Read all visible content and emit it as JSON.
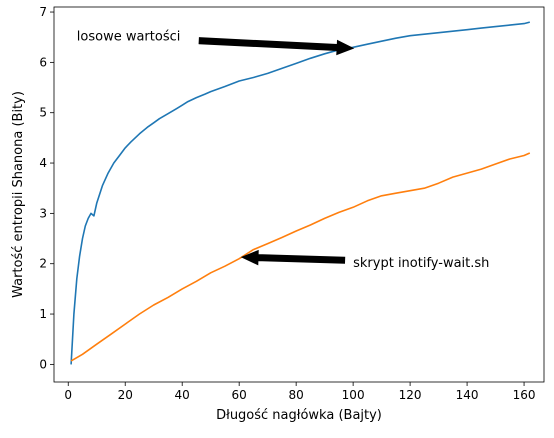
{
  "chart_data": {
    "type": "line",
    "title": "",
    "xlabel": "Długość nagłówka (Bajty)",
    "ylabel": "Wartość entropii Shanona (Bity)",
    "xlim": [
      -5,
      167
    ],
    "ylim": [
      -0.35,
      7.1
    ],
    "xticks": [
      0,
      20,
      40,
      60,
      80,
      100,
      120,
      140,
      160
    ],
    "yticks": [
      0,
      1,
      2,
      3,
      4,
      5,
      6,
      7
    ],
    "grid": false,
    "legend": "none",
    "series": [
      {
        "color": "#1f77b4",
        "x": [
          1,
          2,
          3,
          4,
          5,
          6,
          7,
          8,
          9,
          10,
          12,
          14,
          16,
          18,
          20,
          22,
          25,
          28,
          30,
          32,
          35,
          38,
          40,
          42,
          45,
          48,
          50,
          55,
          60,
          65,
          70,
          75,
          80,
          85,
          90,
          95,
          100,
          105,
          110,
          115,
          120,
          125,
          130,
          135,
          140,
          145,
          150,
          155,
          160,
          162
        ],
        "y": [
          0.0,
          1.0,
          1.7,
          2.15,
          2.5,
          2.75,
          2.9,
          3.0,
          2.95,
          3.2,
          3.55,
          3.8,
          4.0,
          4.15,
          4.3,
          4.42,
          4.58,
          4.72,
          4.8,
          4.88,
          4.98,
          5.08,
          5.15,
          5.22,
          5.3,
          5.37,
          5.42,
          5.52,
          5.63,
          5.7,
          5.78,
          5.88,
          5.98,
          6.08,
          6.17,
          6.25,
          6.3,
          6.36,
          6.42,
          6.48,
          6.53,
          6.56,
          6.59,
          6.62,
          6.65,
          6.68,
          6.71,
          6.74,
          6.77,
          6.8
        ]
      },
      {
        "color": "#ff7f0e",
        "x": [
          1,
          5,
          10,
          15,
          20,
          25,
          30,
          35,
          40,
          45,
          50,
          55,
          60,
          65,
          70,
          75,
          80,
          85,
          90,
          95,
          100,
          105,
          110,
          115,
          120,
          125,
          130,
          135,
          140,
          145,
          150,
          155,
          160,
          162
        ],
        "y": [
          0.07,
          0.2,
          0.4,
          0.6,
          0.8,
          1.0,
          1.18,
          1.33,
          1.5,
          1.65,
          1.82,
          1.95,
          2.1,
          2.28,
          2.4,
          2.52,
          2.65,
          2.77,
          2.9,
          3.02,
          3.12,
          3.25,
          3.35,
          3.4,
          3.45,
          3.5,
          3.6,
          3.72,
          3.8,
          3.88,
          3.98,
          4.08,
          4.15,
          4.2
        ]
      }
    ],
    "annotations": [
      {
        "text": "losowe wartości",
        "text_x": 3,
        "text_y": 6.5,
        "arrow_from": [
          46,
          6.43
        ],
        "arrow_to": [
          100,
          6.28
        ]
      },
      {
        "text": "skrypt inotify-wait.sh",
        "text_x": 100,
        "text_y": 2.0,
        "arrow_from": [
          97,
          2.07
        ],
        "arrow_to": [
          61,
          2.13
        ]
      }
    ]
  }
}
